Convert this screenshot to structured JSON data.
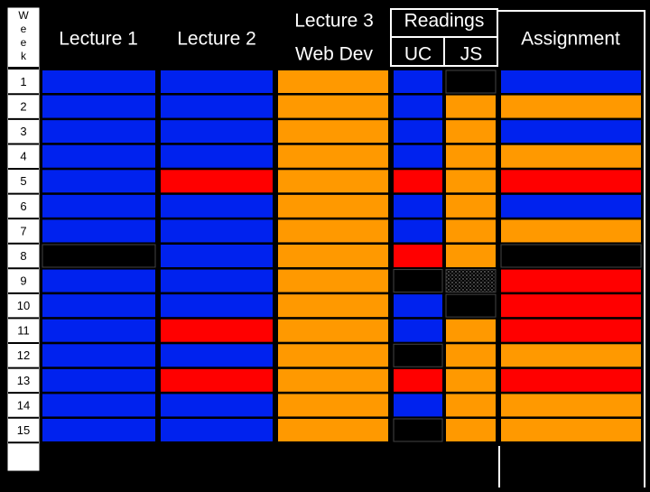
{
  "headers": {
    "week": [
      "W",
      "e",
      "e",
      "k"
    ],
    "lecture_1": "Lecture 1",
    "lecture_2": "Lecture 2",
    "lecture_3": [
      "Lecture 3",
      "Web Dev"
    ],
    "readings": "Readings",
    "readings_sub": [
      "UC",
      "JS"
    ],
    "assignment": "Assignment"
  },
  "rows": [
    {
      "week": 1,
      "cells": [
        "#0022ee",
        "#0022ee",
        "#ff9900",
        "#0022ee",
        "#000000",
        "#0022ee"
      ]
    },
    {
      "week": 2,
      "cells": [
        "#0022ee",
        "#0022ee",
        "#ff9900",
        "#0022ee",
        "#ff9900",
        "#ff9900"
      ]
    },
    {
      "week": 3,
      "cells": [
        "#0022ee",
        "#0022ee",
        "#ff9900",
        "#0022ee",
        "#ff9900",
        "#0022ee"
      ]
    },
    {
      "week": 4,
      "cells": [
        "#0022ee",
        "#0022ee",
        "#ff9900",
        "#0022ee",
        "#ff9900",
        "#ff9900"
      ]
    },
    {
      "week": 5,
      "cells": [
        "#0022ee",
        "#ff0000",
        "#ff9900",
        "#ff0000",
        "#ff9900",
        "#ff0000"
      ]
    },
    {
      "week": 6,
      "cells": [
        "#0022ee",
        "#0022ee",
        "#ff9900",
        "#0022ee",
        "#ff9900",
        "#0022ee"
      ]
    },
    {
      "week": 7,
      "cells": [
        "#0022ee",
        "#0022ee",
        "#ff9900",
        "#0022ee",
        "#ff9900",
        "#ff9900"
      ]
    },
    {
      "week": 8,
      "cells": [
        "#000000",
        "#0022ee",
        "#ff9900",
        "#ff0000",
        "#ff9900",
        "#000000"
      ]
    },
    {
      "week": 9,
      "cells": [
        "#0022ee",
        "#0022ee",
        "#ff9900",
        "#000000",
        "dots",
        "#ff0000"
      ]
    },
    {
      "week": 10,
      "cells": [
        "#0022ee",
        "#0022ee",
        "#ff9900",
        "#0022ee",
        "#000000",
        "#ff0000"
      ]
    },
    {
      "week": 11,
      "cells": [
        "#0022ee",
        "#ff0000",
        "#ff9900",
        "#0022ee",
        "#ff9900",
        "#ff0000"
      ]
    },
    {
      "week": 12,
      "cells": [
        "#0022ee",
        "#0022ee",
        "#ff9900",
        "#000000",
        "#ff9900",
        "#ff9900"
      ]
    },
    {
      "week": 13,
      "cells": [
        "#0022ee",
        "#ff0000",
        "#ff9900",
        "#ff0000",
        "#ff9900",
        "#ff0000"
      ]
    },
    {
      "week": 14,
      "cells": [
        "#0022ee",
        "#0022ee",
        "#ff9900",
        "#0022ee",
        "#ff9900",
        "#ff9900"
      ]
    },
    {
      "week": 15,
      "cells": [
        "#0022ee",
        "#0022ee",
        "#ff9900",
        "#000000",
        "#ff9900",
        "#ff9900"
      ]
    }
  ]
}
